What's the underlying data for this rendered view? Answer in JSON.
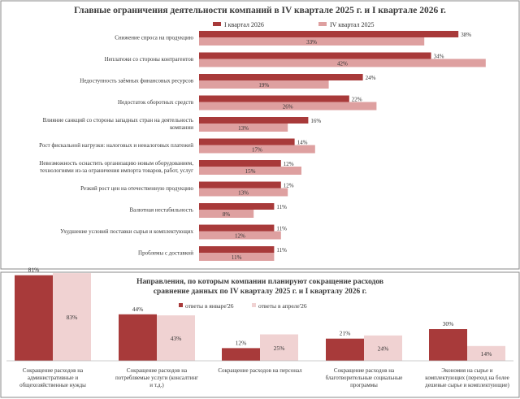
{
  "colors": {
    "dark": "#a83a3a",
    "light": "#dea0a0",
    "lighter": "#f0d2d2",
    "border": "#888888"
  },
  "chart_data": [
    {
      "type": "bar",
      "orientation": "horizontal",
      "title": "Главные ограничения деятельности компаний в IV квартале 2025 г. и I квартале 2026 г.",
      "legend_position": "top-center",
      "categories": [
        "Снижение спроса на продукцию",
        "Неплатежи со стороны контрагентов",
        "Недоступность заёмных финансовых ресурсов",
        "Недостаток оборотных средств",
        "Влияние санкций со стороны западных стран на деятельность компании",
        "Рост фискальной нагрузки: налоговых и неналоговых платежей",
        "Невозможность оснастить организацию новым оборудованием, технологиями из-за ограничения импорта товаров, работ, услуг",
        "Резкий рост цен на отечественную продукцию",
        "Валютная нестабильность",
        "Ухудшение условий поставки сырья и комплектующих",
        "Проблемы с доставкой"
      ],
      "category_lines": [
        [
          "Снижение спроса на продукцию"
        ],
        [
          "Неплатежи со стороны контрагентов"
        ],
        [
          "Недоступность заёмных финансовых ресурсов"
        ],
        [
          "Недостаток оборотных средств"
        ],
        [
          "Влияние санкций со стороны западных стран на деятельность",
          "компании"
        ],
        [
          "Рост фискальной нагрузки: налоговых и неналоговых платежей"
        ],
        [
          "Невозможность оснастить организацию новым оборудованием,",
          "технологиями из-за ограничения импорта товаров, работ, услуг"
        ],
        [
          "Резкий рост цен на отечественную продукцию"
        ],
        [
          "Валютная нестабильность"
        ],
        [
          "Ухудшение условий поставки сырья и комплектующих"
        ],
        [
          "Проблемы с доставкой"
        ]
      ],
      "series": [
        {
          "name": "I квартал 2026",
          "values": [
            38,
            34,
            24,
            22,
            16,
            14,
            12,
            12,
            11,
            11,
            11
          ]
        },
        {
          "name": "IV квартал 2025",
          "values": [
            33,
            42,
            19,
            26,
            13,
            17,
            15,
            13,
            8,
            12,
            11
          ]
        }
      ],
      "value_suffix": "%",
      "xlim": [
        0,
        42
      ]
    },
    {
      "type": "bar",
      "orientation": "vertical",
      "title": "Направления, по которым компании планируют сокращение расходов сравнение данных по IV кварталу 2025 г. и I кварталу 2026 г.",
      "title_lines": [
        "Направления, по которым компании планируют сокращение расходов",
        "сравнение данных по IV кварталу 2025 г. и I кварталу 2026 г."
      ],
      "legend_position": "top-center",
      "categories": [
        "Сокращение расходов на административные и общехозяйственные нужды",
        "Сокращение расходов на потребляемые услуги (консалтинг и т.д.)",
        "Сокращение расходов на персонал",
        "Сокращение расходов на благотворительные социальные программы",
        "Экономия на сырье и комплектующих (переход на более дешевые сырье и комплектующие)"
      ],
      "category_lines": [
        [
          "Сокращение расходов на",
          "административные и",
          "общехозяйственные нужды"
        ],
        [
          "Сокращение расходов на",
          "потребляемые услуги (консалтинг",
          "и т.д.)"
        ],
        [
          "Сокращение расходов на персонал"
        ],
        [
          "Сокращение расходов на",
          "благотворительные социальные",
          "программы"
        ],
        [
          "Экономия на сырье и",
          "комплектующих (переход на более",
          "дешевые сырье и комплектующие)"
        ]
      ],
      "series": [
        {
          "name": "ответы в январе'26",
          "values": [
            81,
            44,
            12,
            21,
            30
          ]
        },
        {
          "name": "ответы в апреле'26",
          "values": [
            83,
            43,
            25,
            24,
            14
          ]
        }
      ],
      "value_suffix": "%",
      "ylim": [
        0,
        83
      ]
    }
  ]
}
